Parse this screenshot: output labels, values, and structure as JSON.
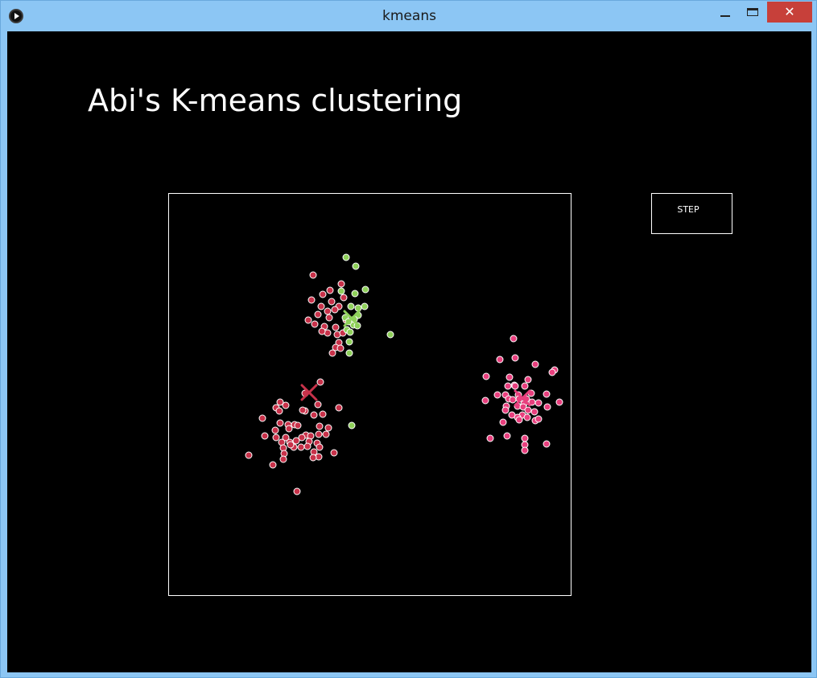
{
  "window": {
    "title": "kmeans",
    "close_glyph": "✕"
  },
  "page": {
    "heading": "Abi's K-means clustering",
    "step_label": "STEP"
  },
  "colors": {
    "background": "#000000",
    "frame": "#ffffff",
    "cluster_red": "#c8324a",
    "cluster_green": "#8fd05a",
    "cluster_pink": "#e8407e",
    "point_stroke": "#ffffff"
  },
  "icons": {
    "app": "processing-app-icon",
    "centroid": "x-mark-icon"
  },
  "chart_data": {
    "type": "scatter",
    "xlim": [
      0,
      500
    ],
    "ylim": [
      0,
      500
    ],
    "grid": false,
    "legend": "none",
    "series": [
      {
        "cluster": "red",
        "color": "#c8324a",
        "centroid": [
          175,
          248
        ],
        "points": [
          [
            180,
            102
          ],
          [
            192,
            126
          ],
          [
            201,
            121
          ],
          [
            215,
            113
          ],
          [
            178,
            133
          ],
          [
            203,
            135
          ],
          [
            190,
            141
          ],
          [
            212,
            141
          ],
          [
            198,
            147
          ],
          [
            207,
            145
          ],
          [
            186,
            151
          ],
          [
            200,
            155
          ],
          [
            174,
            158
          ],
          [
            182,
            163
          ],
          [
            194,
            166
          ],
          [
            208,
            167
          ],
          [
            210,
            176
          ],
          [
            217,
            174
          ],
          [
            212,
            186
          ],
          [
            208,
            192
          ],
          [
            214,
            193
          ],
          [
            204,
            199
          ],
          [
            198,
            174
          ],
          [
            221,
            158
          ],
          [
            191,
            172
          ],
          [
            218,
            130
          ],
          [
            189,
            235
          ],
          [
            170,
            249
          ],
          [
            139,
            260
          ],
          [
            146,
            264
          ],
          [
            134,
            267
          ],
          [
            138,
            271
          ],
          [
            186,
            263
          ],
          [
            192,
            275
          ],
          [
            212,
            267
          ],
          [
            170,
            271
          ],
          [
            181,
            276
          ],
          [
            117,
            280
          ],
          [
            139,
            286
          ],
          [
            149,
            288
          ],
          [
            157,
            288
          ],
          [
            161,
            289
          ],
          [
            133,
            295
          ],
          [
            150,
            293
          ],
          [
            188,
            290
          ],
          [
            199,
            292
          ],
          [
            120,
            302
          ],
          [
            134,
            304
          ],
          [
            146,
            304
          ],
          [
            171,
            301
          ],
          [
            177,
            302
          ],
          [
            166,
            304
          ],
          [
            187,
            300
          ],
          [
            196,
            300
          ],
          [
            141,
            310
          ],
          [
            151,
            310
          ],
          [
            159,
            308
          ],
          [
            175,
            309
          ],
          [
            185,
            311
          ],
          [
            156,
            316
          ],
          [
            143,
            317
          ],
          [
            165,
            316
          ],
          [
            144,
            324
          ],
          [
            181,
            322
          ],
          [
            188,
            316
          ],
          [
            206,
            323
          ],
          [
            100,
            326
          ],
          [
            130,
            338
          ],
          [
            143,
            331
          ],
          [
            187,
            328
          ],
          [
            160,
            371
          ],
          [
            152,
            313
          ],
          [
            180,
            329
          ],
          [
            173,
            315
          ],
          [
            167,
            270
          ]
        ]
      },
      {
        "cluster": "green",
        "color": "#8fd05a",
        "centroid": [
          228,
          156
        ],
        "points": [
          [
            221,
            80
          ],
          [
            233,
            91
          ],
          [
            215,
            122
          ],
          [
            232,
            125
          ],
          [
            245,
            120
          ],
          [
            227,
            141
          ],
          [
            236,
            143
          ],
          [
            244,
            141
          ],
          [
            220,
            155
          ],
          [
            236,
            152
          ],
          [
            230,
            164
          ],
          [
            235,
            165
          ],
          [
            222,
            170
          ],
          [
            226,
            173
          ],
          [
            225,
            185
          ],
          [
            225,
            199
          ],
          [
            276,
            176
          ],
          [
            228,
            289
          ],
          [
            231,
            157
          ],
          [
            224,
            160
          ]
        ]
      },
      {
        "cluster": "pink",
        "color": "#e8407e",
        "centroid": [
          440,
          255
        ],
        "points": [
          [
            429,
            181
          ],
          [
            412,
            207
          ],
          [
            431,
            205
          ],
          [
            456,
            213
          ],
          [
            395,
            228
          ],
          [
            424,
            229
          ],
          [
            447,
            232
          ],
          [
            480,
            220
          ],
          [
            477,
            223
          ],
          [
            430,
            239
          ],
          [
            422,
            240
          ],
          [
            431,
            240
          ],
          [
            443,
            240
          ],
          [
            409,
            251
          ],
          [
            419,
            251
          ],
          [
            435,
            251
          ],
          [
            451,
            249
          ],
          [
            470,
            250
          ],
          [
            394,
            258
          ],
          [
            423,
            256
          ],
          [
            428,
            257
          ],
          [
            436,
            256
          ],
          [
            445,
            256
          ],
          [
            452,
            260
          ],
          [
            442,
            262
          ],
          [
            460,
            261
          ],
          [
            486,
            260
          ],
          [
            420,
            265
          ],
          [
            434,
            265
          ],
          [
            441,
            266
          ],
          [
            419,
            270
          ],
          [
            447,
            270
          ],
          [
            455,
            272
          ],
          [
            471,
            266
          ],
          [
            427,
            276
          ],
          [
            440,
            276
          ],
          [
            446,
            279
          ],
          [
            434,
            279
          ],
          [
            456,
            283
          ],
          [
            460,
            281
          ],
          [
            416,
            285
          ],
          [
            436,
            282
          ],
          [
            400,
            305
          ],
          [
            421,
            302
          ],
          [
            443,
            305
          ],
          [
            443,
            313
          ],
          [
            470,
            312
          ],
          [
            443,
            320
          ]
        ]
      }
    ]
  }
}
